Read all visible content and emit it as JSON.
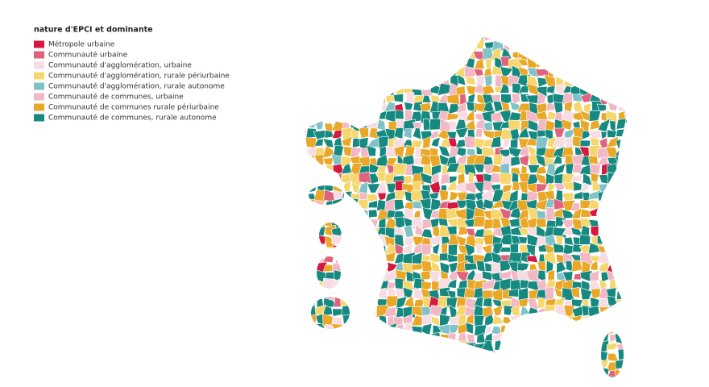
{
  "legend": {
    "title": "nature d'EPCI et dominante",
    "items": [
      {
        "label": "Métropole urbaine",
        "color": "#d6173f"
      },
      {
        "label": "Communauté urbaine",
        "color": "#e0637e"
      },
      {
        "label": "Communauté d'agglomération, urbaine",
        "color": "#f7dde3"
      },
      {
        "label": "Communauté d'agglomération, rurale périurbaine",
        "color": "#f5d76e"
      },
      {
        "label": "Communauté d'agglomération, rurale autonome",
        "color": "#7fc3c8"
      },
      {
        "label": "Communauté de communes, urbaine",
        "color": "#f2b8c6"
      },
      {
        "label": "Communauté de communes  rurale périurbaine",
        "color": "#eaa829"
      },
      {
        "label": "Communauté de communes, rurale autonome",
        "color": "#168a80"
      }
    ]
  }
}
